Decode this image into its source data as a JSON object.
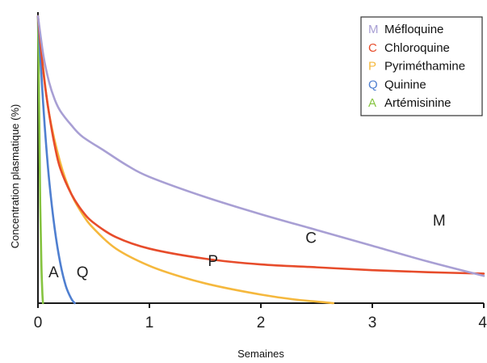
{
  "chart_data": {
    "type": "line",
    "title": "",
    "xlabel": "Semaines",
    "ylabel": "Concentration plasmatique (%)",
    "xlim": [
      0,
      4
    ],
    "ylim": [
      0,
      100
    ],
    "x_ticks": [
      "0",
      "1",
      "2",
      "3",
      "4"
    ],
    "grid": false,
    "legend_position": "top-right",
    "legend": [
      {
        "letter": "M",
        "name": "Méfloquine",
        "color": "#a89fd4"
      },
      {
        "letter": "C",
        "name": "Chloroquine",
        "color": "#e74c2b"
      },
      {
        "letter": "P",
        "name": "Pyriméthamine",
        "color": "#f5b83d"
      },
      {
        "letter": "Q",
        "name": "Quinine",
        "color": "#4f7fd0"
      },
      {
        "letter": "A",
        "name": "Artémisinine",
        "color": "#86c440"
      }
    ],
    "series": [
      {
        "name": "Méfloquine",
        "label": "M",
        "label_at": [
          3.6,
          27
        ],
        "color": "#a89fd4",
        "x": [
          0,
          0.05,
          0.1,
          0.15,
          0.2,
          0.3,
          0.4,
          0.6,
          0.8,
          1.0,
          1.5,
          2.0,
          2.5,
          3.0,
          3.5,
          4.0
        ],
        "y": [
          100,
          86,
          77,
          71,
          67,
          62,
          58,
          53,
          48,
          44,
          37,
          31,
          25.5,
          20,
          14.5,
          9.5
        ]
      },
      {
        "name": "Chloroquine",
        "label": "C",
        "label_at": [
          2.45,
          21
        ],
        "color": "#e74c2b",
        "x": [
          0,
          0.05,
          0.1,
          0.15,
          0.2,
          0.3,
          0.4,
          0.5,
          0.7,
          1.0,
          1.5,
          2.0,
          2.5,
          3.0,
          3.5,
          4.0
        ],
        "y": [
          100,
          80,
          66,
          55,
          47,
          38,
          32,
          28,
          23,
          19,
          15.5,
          13.5,
          12.5,
          11.5,
          10.8,
          10.3
        ]
      },
      {
        "name": "Pyriméthamine",
        "label": "P",
        "label_at": [
          1.57,
          13
        ],
        "color": "#f5b83d",
        "x": [
          0,
          0.05,
          0.1,
          0.2,
          0.3,
          0.4,
          0.5,
          0.7,
          1.0,
          1.3,
          1.6,
          2.0,
          2.3,
          2.6,
          2.65
        ],
        "y": [
          100,
          81,
          66,
          49,
          38,
          31,
          26,
          19,
          13,
          9,
          6,
          3,
          1.3,
          0.2,
          0
        ]
      },
      {
        "name": "Quinine",
        "label": "Q",
        "label_at": [
          0.4,
          9
        ],
        "color": "#4f7fd0",
        "x": [
          0,
          0.03,
          0.06,
          0.1,
          0.15,
          0.2,
          0.25,
          0.3,
          0.33
        ],
        "y": [
          100,
          80,
          62,
          43,
          26,
          14,
          6,
          1.5,
          0
        ]
      },
      {
        "name": "Artémisinine",
        "label": "A",
        "label_at": [
          0.14,
          9
        ],
        "color": "#86c440",
        "x": [
          0,
          0.01,
          0.02,
          0.03,
          0.035,
          0.04,
          0.045
        ],
        "y": [
          100,
          70,
          35,
          15,
          8,
          3,
          0
        ]
      }
    ]
  }
}
